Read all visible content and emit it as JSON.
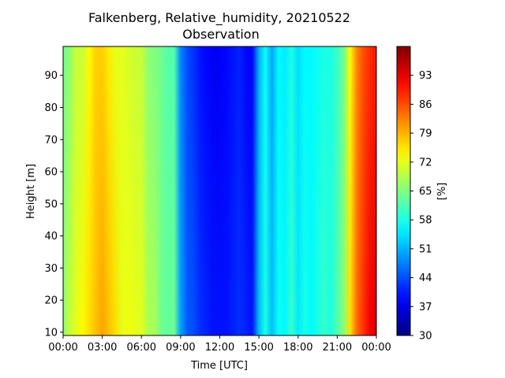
{
  "chart_data": {
    "type": "heatmap",
    "title": "Falkenberg, Relative_humidity, 20210522",
    "subtitle": "Observation",
    "xlabel": "Time [UTC]",
    "ylabel": "Height [m]",
    "colorbar_label": "[%]",
    "colormap": "jet",
    "x_ticks": [
      "00:00",
      "03:00",
      "06:00",
      "09:00",
      "12:00",
      "15:00",
      "18:00",
      "21:00",
      "00:00"
    ],
    "x_range_hours": [
      0,
      24
    ],
    "y_ticks": [
      10,
      20,
      30,
      40,
      50,
      60,
      70,
      80,
      90
    ],
    "ylim": [
      9,
      99
    ],
    "colorbar_ticks": [
      30,
      37,
      44,
      51,
      58,
      65,
      72,
      79,
      86,
      93
    ],
    "colorbar_range": [
      30,
      100
    ],
    "time_hours": [
      0,
      0.5,
      1,
      1.5,
      2,
      2.5,
      3,
      3.5,
      4,
      4.5,
      5,
      5.5,
      6,
      6.5,
      7,
      7.5,
      8,
      8.5,
      9,
      9.5,
      10,
      10.5,
      11,
      11.5,
      12,
      12.5,
      13,
      13.5,
      14,
      14.5,
      15,
      15.5,
      16,
      16.5,
      17,
      17.5,
      18,
      18.5,
      19,
      19.5,
      20,
      20.5,
      21,
      21.5,
      22,
      22.5,
      23,
      23.5,
      24
    ],
    "rh_bottom": [
      66,
      70,
      72,
      74,
      76,
      78,
      80,
      78,
      76,
      72,
      73,
      72,
      72,
      68,
      68,
      64,
      63,
      64,
      50,
      45,
      44,
      42,
      41,
      40,
      40,
      40,
      41,
      42,
      41,
      40,
      52,
      58,
      52,
      57,
      56,
      60,
      55,
      58,
      56,
      58,
      60,
      58,
      62,
      66,
      76,
      84,
      88,
      92,
      94
    ],
    "rh_top": [
      64,
      66,
      70,
      70,
      74,
      77,
      77,
      75,
      72,
      72,
      71,
      70,
      70,
      66,
      65,
      64,
      62,
      62,
      48,
      44,
      42,
      40,
      39,
      38,
      38,
      39,
      40,
      41,
      39,
      39,
      51,
      57,
      50,
      56,
      55,
      58,
      54,
      56,
      56,
      57,
      58,
      58,
      60,
      64,
      74,
      82,
      86,
      88,
      90
    ]
  }
}
